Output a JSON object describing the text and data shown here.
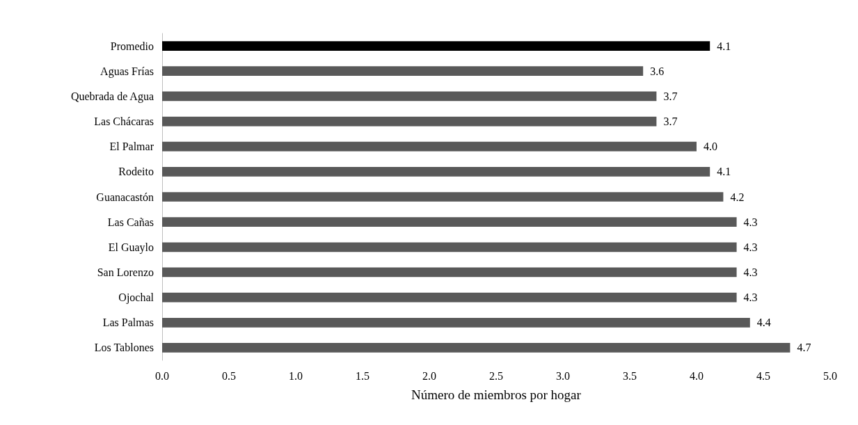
{
  "chart_data": {
    "type": "bar",
    "orientation": "horizontal",
    "xlabel": "Número de miembros por hogar",
    "categories": [
      "Promedio",
      "Aguas Frías",
      "Quebrada de Agua",
      "Las Chácaras",
      "El Palmar",
      "Rodeito",
      "Guanacastón",
      "Las Cañas",
      "El Guaylo",
      "San Lorenzo",
      "Ojochal",
      "Las Palmas",
      "Los Tablones"
    ],
    "values": [
      4.1,
      3.6,
      3.7,
      3.7,
      4.0,
      4.1,
      4.2,
      4.3,
      4.3,
      4.3,
      4.3,
      4.4,
      4.7
    ],
    "value_labels": [
      "4.1",
      "3.6",
      "3.7",
      "3.7",
      "4.0",
      "4.1",
      "4.2",
      "4.3",
      "4.3",
      "4.3",
      "4.3",
      "4.4",
      "4.7"
    ],
    "colors": [
      "#000000",
      "#595959",
      "#595959",
      "#595959",
      "#595959",
      "#595959",
      "#595959",
      "#595959",
      "#595959",
      "#595959",
      "#595959",
      "#595959",
      "#595959"
    ],
    "xlim": [
      0,
      5
    ],
    "xticks": [
      {
        "value": 0,
        "label": "0.0"
      },
      {
        "value": 0.5,
        "label": "0.5"
      },
      {
        "value": 1,
        "label": "1.0"
      },
      {
        "value": 1.5,
        "label": "1.5"
      },
      {
        "value": 2,
        "label": "2.0"
      },
      {
        "value": 2.5,
        "label": "2.5"
      },
      {
        "value": 3,
        "label": "3.0"
      },
      {
        "value": 3.5,
        "label": "3.5"
      },
      {
        "value": 4,
        "label": "4.0"
      },
      {
        "value": 4.5,
        "label": "4.5"
      },
      {
        "value": 5,
        "label": "5.0"
      }
    ],
    "grid": false
  }
}
